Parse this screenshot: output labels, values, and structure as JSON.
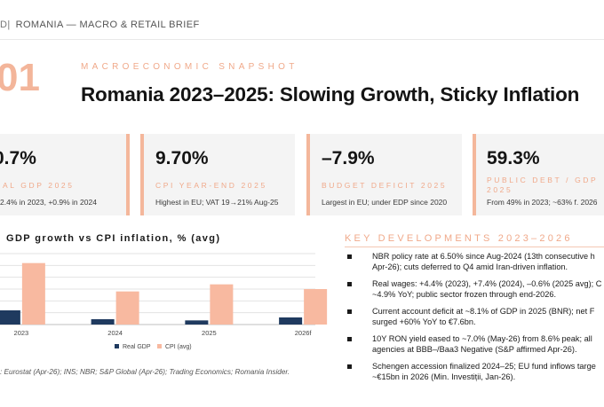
{
  "header": {
    "logo_fragment": "D|",
    "text": "ROMANIA — MACRO & RETAIL BRIEF"
  },
  "section": {
    "number": "01",
    "eyebrow": "MACROECONOMIC SNAPSHOT",
    "title": "Romania 2023–2025: Slowing Growth, Sticky Inflation"
  },
  "cards": [
    {
      "value": "0.7%",
      "label": "AL GDP 2025",
      "note": "2.4% in 2023, +0.9% in 2024"
    },
    {
      "value": "9.70%",
      "label": "CPI YEAR-END 2025",
      "note": "Highest in EU; VAT 19→21% Aug-25"
    },
    {
      "value": "–7.9%",
      "label": "BUDGET DEFICIT 2025",
      "note": "Largest in EU; under EDP since 2020"
    },
    {
      "value": "59.3%",
      "label": "PUBLIC DEBT / GDP 2025",
      "note": "From 49% in 2023; ~63% f. 2026"
    }
  ],
  "chart": {
    "title": "GDP growth vs CPI inflation, % (avg)",
    "source": ": Eurostat (Apr-26); INS; NBR; S&P Global (Apr-26); Trading Economics; Romania Insider."
  },
  "chart_data": {
    "type": "bar",
    "categories": [
      "2023",
      "2024",
      "2025",
      "2026f"
    ],
    "series": [
      {
        "name": "Real GDP",
        "values": [
          2.4,
          0.9,
          0.7,
          1.2
        ],
        "color": "#1f3a5f"
      },
      {
        "name": "CPI (avg)",
        "values": [
          10.4,
          5.6,
          6.8,
          6.0
        ],
        "color": "#f8b9a0"
      }
    ],
    "ylim": [
      0,
      12
    ],
    "grid": true,
    "legend": "bottom"
  },
  "developments": {
    "title": "KEY DEVELOPMENTS 2023–2026",
    "items": [
      [
        "NBR policy rate at 6.50% since Aug-2024 (13th consecutive h",
        "Apr-26); cuts deferred to Q4 amid Iran-driven inflation."
      ],
      [
        "Real wages: +4.4% (2023), +7.4% (2024), –0.6% (2025 avg); C",
        "~4.9% YoY; public sector frozen through end-2026."
      ],
      [
        "Current account deficit at ~8.1% of GDP in 2025 (BNR); net F",
        "surged +60% YoY to €7.6bn."
      ],
      [
        "10Y RON yield eased to ~7.0% (May-26) from 8.6% peak; all",
        "agencies at BBB–/Baa3 Negative (S&P affirmed Apr-26)."
      ],
      [
        "Schengen accession finalized 2024–25; EU fund inflows targe",
        "~€15bn in 2026 (Min. Investiții, Jan-26)."
      ]
    ]
  }
}
